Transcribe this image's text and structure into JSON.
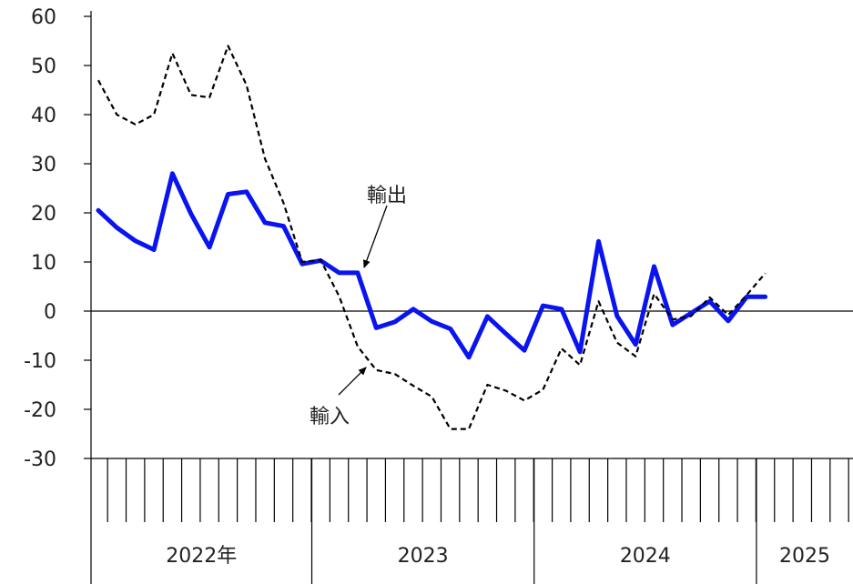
{
  "chart_data": {
    "type": "line",
    "ylim": [
      -30,
      60
    ],
    "yticks": [
      60,
      50,
      40,
      30,
      20,
      10,
      0,
      -10,
      -20,
      -30
    ],
    "year_labels": [
      "2022年",
      "2023",
      "2024",
      "2025"
    ],
    "months_per_year": [
      12,
      12,
      12,
      1
    ],
    "series": [
      {
        "name": "輸出",
        "color": "#0a14f0",
        "style": "solid",
        "values": [
          20.5,
          17.0,
          14.3,
          12.5,
          28.0,
          19.8,
          13.0,
          23.8,
          24.3,
          18.0,
          17.3,
          9.6,
          10.3,
          7.8,
          7.8,
          -3.4,
          -2.2,
          0.4,
          -2.1,
          -3.6,
          -9.4,
          -1.1,
          -4.6,
          -8.0,
          1.1,
          0.4,
          -8.3,
          14.2,
          -1.0,
          -6.8,
          9.1,
          -2.8,
          -0.4,
          2.0,
          -2.0,
          2.9,
          2.9
        ]
      },
      {
        "name": "輸入",
        "color": "#000000",
        "style": "dashed",
        "values": [
          47.0,
          40.0,
          38.0,
          40.0,
          52.5,
          44.0,
          43.5,
          54.0,
          46.0,
          31.0,
          22.0,
          10.0,
          10.4,
          3.0,
          -7.2,
          -12.0,
          -12.8,
          -15.2,
          -17.4,
          -24.0,
          -24.0,
          -15.0,
          -16.2,
          -18.2,
          -16.0,
          -7.6,
          -11.0,
          2.0,
          -6.4,
          -9.2,
          3.5,
          -1.7,
          -1.0,
          2.8,
          -0.8,
          3.3,
          7.7
        ]
      }
    ],
    "annotations": [
      {
        "text": "輸出",
        "series": 0
      },
      {
        "text": "輸入",
        "series": 1
      }
    ]
  }
}
